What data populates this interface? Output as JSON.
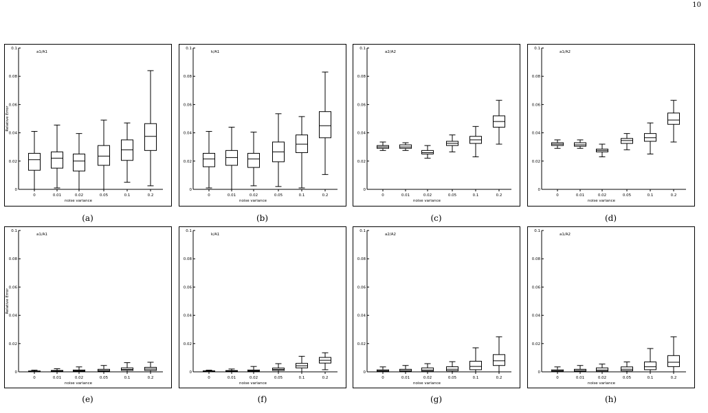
{
  "page": {
    "number": "10"
  },
  "chart_data": [
    {
      "type": "box",
      "caption": "(a)",
      "annotation": "a1/A1",
      "xlabel": "noise variance",
      "ylabel": "Relative Error",
      "ylim": [
        0,
        0.1
      ],
      "yticks": [
        "0",
        "0.02",
        "0.04",
        "0.06",
        "0.08",
        "0.1"
      ],
      "categories": [
        "0",
        "0.01",
        "0.02",
        "0.05",
        "0.1",
        "0.2"
      ],
      "boxes": [
        {
          "whisker_low": 0.0,
          "q1": 0.0135,
          "median": 0.021,
          "q3": 0.0255,
          "whisker_high": 0.041
        },
        {
          "whisker_low": 0.001,
          "q1": 0.015,
          "median": 0.022,
          "q3": 0.0265,
          "whisker_high": 0.0455
        },
        {
          "whisker_low": 0.0,
          "q1": 0.013,
          "median": 0.02,
          "q3": 0.025,
          "whisker_high": 0.0395
        },
        {
          "whisker_low": 0.0,
          "q1": 0.017,
          "median": 0.0235,
          "q3": 0.031,
          "whisker_high": 0.049
        },
        {
          "whisker_low": 0.005,
          "q1": 0.0205,
          "median": 0.028,
          "q3": 0.035,
          "whisker_high": 0.047
        },
        {
          "whisker_low": 0.0025,
          "q1": 0.0275,
          "median": 0.0375,
          "q3": 0.0465,
          "whisker_high": 0.084
        }
      ]
    },
    {
      "type": "box",
      "caption": "(b)",
      "annotation": "k/A1",
      "xlabel": "noise variance",
      "ylabel": "",
      "ylim": [
        0,
        0.1
      ],
      "yticks": [
        "0",
        "0.02",
        "0.04",
        "0.06",
        "0.08",
        "0.1"
      ],
      "categories": [
        "0",
        "0.01",
        "0.02",
        "0.05",
        "0.1",
        "0.2"
      ],
      "boxes": [
        {
          "whisker_low": 0.001,
          "q1": 0.016,
          "median": 0.0215,
          "q3": 0.0255,
          "whisker_high": 0.041
        },
        {
          "whisker_low": 0.0,
          "q1": 0.017,
          "median": 0.0225,
          "q3": 0.0275,
          "whisker_high": 0.044
        },
        {
          "whisker_low": 0.0025,
          "q1": 0.0155,
          "median": 0.0215,
          "q3": 0.0255,
          "whisker_high": 0.0405
        },
        {
          "whisker_low": 0.002,
          "q1": 0.0195,
          "median": 0.0265,
          "q3": 0.0335,
          "whisker_high": 0.0535
        },
        {
          "whisker_low": 0.001,
          "q1": 0.026,
          "median": 0.032,
          "q3": 0.0385,
          "whisker_high": 0.0515
        },
        {
          "whisker_low": 0.0105,
          "q1": 0.0365,
          "median": 0.045,
          "q3": 0.055,
          "whisker_high": 0.083
        }
      ]
    },
    {
      "type": "box",
      "caption": "(c)",
      "annotation": "a2/A2",
      "xlabel": "noise variance",
      "ylabel": "",
      "ylim": [
        0,
        0.1
      ],
      "yticks": [
        "0",
        "0.02",
        "0.04",
        "0.06",
        "0.08",
        "0.1"
      ],
      "categories": [
        "0",
        "0.01",
        "0.02",
        "0.05",
        "0.1",
        "0.2"
      ],
      "boxes": [
        {
          "whisker_low": 0.0275,
          "q1": 0.029,
          "median": 0.03,
          "q3": 0.031,
          "whisker_high": 0.0335
        },
        {
          "whisker_low": 0.0275,
          "q1": 0.029,
          "median": 0.03,
          "q3": 0.0315,
          "whisker_high": 0.033
        },
        {
          "whisker_low": 0.022,
          "q1": 0.025,
          "median": 0.026,
          "q3": 0.0275,
          "whisker_high": 0.031
        },
        {
          "whisker_low": 0.0265,
          "q1": 0.031,
          "median": 0.0325,
          "q3": 0.034,
          "whisker_high": 0.0385
        },
        {
          "whisker_low": 0.023,
          "q1": 0.0325,
          "median": 0.035,
          "q3": 0.0375,
          "whisker_high": 0.0445
        },
        {
          "whisker_low": 0.032,
          "q1": 0.044,
          "median": 0.048,
          "q3": 0.052,
          "whisker_high": 0.063
        }
      ]
    },
    {
      "type": "box",
      "caption": "(d)",
      "annotation": "a1/A2",
      "xlabel": "noise variance",
      "ylabel": "",
      "ylim": [
        0,
        0.1
      ],
      "yticks": [
        "0",
        "0.02",
        "0.04",
        "0.06",
        "0.08",
        "0.1"
      ],
      "categories": [
        "0",
        "0.01",
        "0.02",
        "0.05",
        "0.1",
        "0.2"
      ],
      "boxes": [
        {
          "whisker_low": 0.029,
          "q1": 0.031,
          "median": 0.032,
          "q3": 0.033,
          "whisker_high": 0.035
        },
        {
          "whisker_low": 0.029,
          "q1": 0.0305,
          "median": 0.0315,
          "q3": 0.033,
          "whisker_high": 0.035
        },
        {
          "whisker_low": 0.023,
          "q1": 0.0265,
          "median": 0.0275,
          "q3": 0.0285,
          "whisker_high": 0.032
        },
        {
          "whisker_low": 0.028,
          "q1": 0.0325,
          "median": 0.0345,
          "q3": 0.036,
          "whisker_high": 0.0395
        },
        {
          "whisker_low": 0.025,
          "q1": 0.034,
          "median": 0.0365,
          "q3": 0.0395,
          "whisker_high": 0.047
        },
        {
          "whisker_low": 0.0335,
          "q1": 0.046,
          "median": 0.049,
          "q3": 0.054,
          "whisker_high": 0.063
        }
      ]
    },
    {
      "type": "box",
      "caption": "(e)",
      "annotation": "a1/A1",
      "xlabel": "noise variance",
      "ylabel": "Relative Error",
      "ylim": [
        0,
        0.1
      ],
      "yticks": [
        "0",
        "0.02",
        "0.04",
        "0.06",
        "0.08",
        "0.1"
      ],
      "categories": [
        "0",
        "0.01",
        "0.02",
        "0.05",
        "0.1",
        "0.2"
      ],
      "boxes": [
        {
          "whisker_low": 0.0,
          "q1": 0.0001,
          "median": 0.0003,
          "q3": 0.0006,
          "whisker_high": 0.0012
        },
        {
          "whisker_low": 0.0,
          "q1": 0.0002,
          "median": 0.0005,
          "q3": 0.001,
          "whisker_high": 0.0022
        },
        {
          "whisker_low": 0.0,
          "q1": 0.0003,
          "median": 0.0007,
          "q3": 0.0013,
          "whisker_high": 0.0035
        },
        {
          "whisker_low": 0.0,
          "q1": 0.0004,
          "median": 0.0009,
          "q3": 0.0018,
          "whisker_high": 0.0045
        },
        {
          "whisker_low": 0.0,
          "q1": 0.001,
          "median": 0.0017,
          "q3": 0.0028,
          "whisker_high": 0.0065
        },
        {
          "whisker_low": 0.0,
          "q1": 0.001,
          "median": 0.002,
          "q3": 0.0032,
          "whisker_high": 0.0068
        }
      ]
    },
    {
      "type": "box",
      "caption": "(f)",
      "annotation": "k/A1",
      "xlabel": "noise variance",
      "ylabel": "",
      "ylim": [
        0,
        0.1
      ],
      "yticks": [
        "0",
        "0.02",
        "0.04",
        "0.06",
        "0.08",
        "0.1"
      ],
      "categories": [
        "0",
        "0.01",
        "0.02",
        "0.05",
        "0.1",
        "0.2"
      ],
      "boxes": [
        {
          "whisker_low": 0.0,
          "q1": 0.0002,
          "median": 0.0004,
          "q3": 0.0007,
          "whisker_high": 0.0012
        },
        {
          "whisker_low": 0.0,
          "q1": 0.0002,
          "median": 0.0005,
          "q3": 0.0009,
          "whisker_high": 0.002
        },
        {
          "whisker_low": 0.0,
          "q1": 0.0003,
          "median": 0.0007,
          "q3": 0.0013,
          "whisker_high": 0.0038
        },
        {
          "whisker_low": 0.0,
          "q1": 0.001,
          "median": 0.0017,
          "q3": 0.0027,
          "whisker_high": 0.0058
        },
        {
          "whisker_low": 0.0,
          "q1": 0.0028,
          "median": 0.0043,
          "q3": 0.006,
          "whisker_high": 0.011
        },
        {
          "whisker_low": 0.0015,
          "q1": 0.0062,
          "median": 0.0082,
          "q3": 0.0102,
          "whisker_high": 0.0135
        }
      ]
    },
    {
      "type": "box",
      "caption": "(g)",
      "annotation": "a2/A2",
      "xlabel": "noise variance",
      "ylabel": "",
      "ylim": [
        0,
        0.1
      ],
      "yticks": [
        "0",
        "0.02",
        "0.04",
        "0.06",
        "0.08",
        "0.1"
      ],
      "categories": [
        "0",
        "0.01",
        "0.02",
        "0.05",
        "0.1",
        "0.2"
      ],
      "boxes": [
        {
          "whisker_low": 0.0,
          "q1": 0.0002,
          "median": 0.0007,
          "q3": 0.0014,
          "whisker_high": 0.0035
        },
        {
          "whisker_low": 0.0,
          "q1": 0.0003,
          "median": 0.0009,
          "q3": 0.0018,
          "whisker_high": 0.0045
        },
        {
          "whisker_low": 0.0,
          "q1": 0.0005,
          "median": 0.0013,
          "q3": 0.0028,
          "whisker_high": 0.0058
        },
        {
          "whisker_low": 0.0,
          "q1": 0.0007,
          "median": 0.0018,
          "q3": 0.0036,
          "whisker_high": 0.0072
        },
        {
          "whisker_low": 0.0,
          "q1": 0.0015,
          "median": 0.0038,
          "q3": 0.0075,
          "whisker_high": 0.017
        },
        {
          "whisker_low": 0.0,
          "q1": 0.0045,
          "median": 0.0078,
          "q3": 0.0122,
          "whisker_high": 0.0248
        }
      ]
    },
    {
      "type": "box",
      "caption": "(h)",
      "annotation": "a1/A2",
      "xlabel": "noise variance",
      "ylabel": "",
      "ylim": [
        0,
        0.1
      ],
      "yticks": [
        "0",
        "0.02",
        "0.04",
        "0.06",
        "0.08",
        "0.1"
      ],
      "categories": [
        "0",
        "0.01",
        "0.02",
        "0.05",
        "0.1",
        "0.2"
      ],
      "boxes": [
        {
          "whisker_low": 0.0,
          "q1": 0.0002,
          "median": 0.0007,
          "q3": 0.0014,
          "whisker_high": 0.0035
        },
        {
          "whisker_low": 0.0,
          "q1": 0.0003,
          "median": 0.0009,
          "q3": 0.0018,
          "whisker_high": 0.0045
        },
        {
          "whisker_low": 0.0,
          "q1": 0.0005,
          "median": 0.0013,
          "q3": 0.0028,
          "whisker_high": 0.0055
        },
        {
          "whisker_low": 0.0,
          "q1": 0.0007,
          "median": 0.0018,
          "q3": 0.0035,
          "whisker_high": 0.007
        },
        {
          "whisker_low": 0.0,
          "q1": 0.0015,
          "median": 0.0036,
          "q3": 0.007,
          "whisker_high": 0.0165
        },
        {
          "whisker_low": 0.0,
          "q1": 0.0037,
          "median": 0.0068,
          "q3": 0.0115,
          "whisker_high": 0.0248
        }
      ]
    }
  ]
}
